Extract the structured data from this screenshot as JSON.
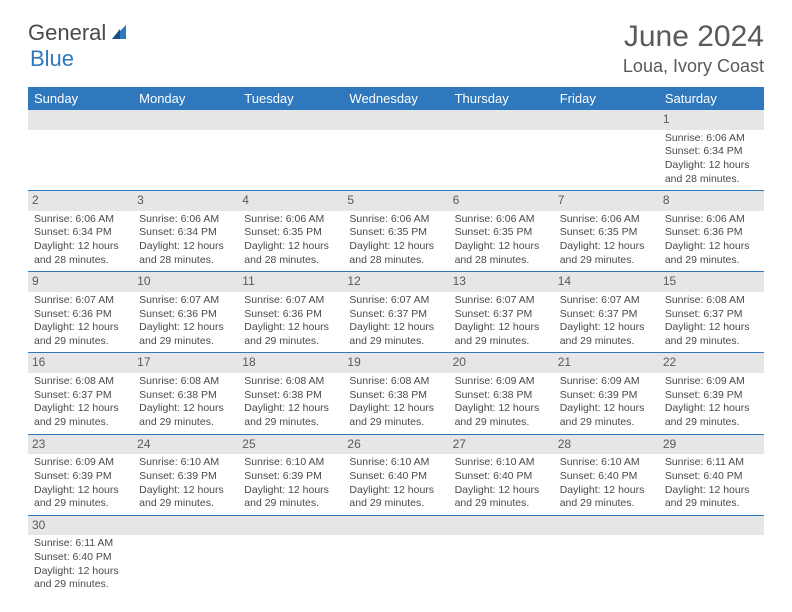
{
  "logo": {
    "part1": "General",
    "part2": "Blue"
  },
  "title": "June 2024",
  "location": "Loua, Ivory Coast",
  "colors": {
    "header_bg": "#2f78bd",
    "header_text": "#ffffff",
    "daynum_bg": "#e6e6e6",
    "rule": "#2f78bd",
    "body_text": "#4a4a4a"
  },
  "weekdays": [
    "Sunday",
    "Monday",
    "Tuesday",
    "Wednesday",
    "Thursday",
    "Friday",
    "Saturday"
  ],
  "weeks": [
    [
      null,
      null,
      null,
      null,
      null,
      null,
      {
        "n": "1",
        "sr": "Sunrise: 6:06 AM",
        "ss": "Sunset: 6:34 PM",
        "dl1": "Daylight: 12 hours",
        "dl2": "and 28 minutes."
      }
    ],
    [
      {
        "n": "2",
        "sr": "Sunrise: 6:06 AM",
        "ss": "Sunset: 6:34 PM",
        "dl1": "Daylight: 12 hours",
        "dl2": "and 28 minutes."
      },
      {
        "n": "3",
        "sr": "Sunrise: 6:06 AM",
        "ss": "Sunset: 6:34 PM",
        "dl1": "Daylight: 12 hours",
        "dl2": "and 28 minutes."
      },
      {
        "n": "4",
        "sr": "Sunrise: 6:06 AM",
        "ss": "Sunset: 6:35 PM",
        "dl1": "Daylight: 12 hours",
        "dl2": "and 28 minutes."
      },
      {
        "n": "5",
        "sr": "Sunrise: 6:06 AM",
        "ss": "Sunset: 6:35 PM",
        "dl1": "Daylight: 12 hours",
        "dl2": "and 28 minutes."
      },
      {
        "n": "6",
        "sr": "Sunrise: 6:06 AM",
        "ss": "Sunset: 6:35 PM",
        "dl1": "Daylight: 12 hours",
        "dl2": "and 28 minutes."
      },
      {
        "n": "7",
        "sr": "Sunrise: 6:06 AM",
        "ss": "Sunset: 6:35 PM",
        "dl1": "Daylight: 12 hours",
        "dl2": "and 29 minutes."
      },
      {
        "n": "8",
        "sr": "Sunrise: 6:06 AM",
        "ss": "Sunset: 6:36 PM",
        "dl1": "Daylight: 12 hours",
        "dl2": "and 29 minutes."
      }
    ],
    [
      {
        "n": "9",
        "sr": "Sunrise: 6:07 AM",
        "ss": "Sunset: 6:36 PM",
        "dl1": "Daylight: 12 hours",
        "dl2": "and 29 minutes."
      },
      {
        "n": "10",
        "sr": "Sunrise: 6:07 AM",
        "ss": "Sunset: 6:36 PM",
        "dl1": "Daylight: 12 hours",
        "dl2": "and 29 minutes."
      },
      {
        "n": "11",
        "sr": "Sunrise: 6:07 AM",
        "ss": "Sunset: 6:36 PM",
        "dl1": "Daylight: 12 hours",
        "dl2": "and 29 minutes."
      },
      {
        "n": "12",
        "sr": "Sunrise: 6:07 AM",
        "ss": "Sunset: 6:37 PM",
        "dl1": "Daylight: 12 hours",
        "dl2": "and 29 minutes."
      },
      {
        "n": "13",
        "sr": "Sunrise: 6:07 AM",
        "ss": "Sunset: 6:37 PM",
        "dl1": "Daylight: 12 hours",
        "dl2": "and 29 minutes."
      },
      {
        "n": "14",
        "sr": "Sunrise: 6:07 AM",
        "ss": "Sunset: 6:37 PM",
        "dl1": "Daylight: 12 hours",
        "dl2": "and 29 minutes."
      },
      {
        "n": "15",
        "sr": "Sunrise: 6:08 AM",
        "ss": "Sunset: 6:37 PM",
        "dl1": "Daylight: 12 hours",
        "dl2": "and 29 minutes."
      }
    ],
    [
      {
        "n": "16",
        "sr": "Sunrise: 6:08 AM",
        "ss": "Sunset: 6:37 PM",
        "dl1": "Daylight: 12 hours",
        "dl2": "and 29 minutes."
      },
      {
        "n": "17",
        "sr": "Sunrise: 6:08 AM",
        "ss": "Sunset: 6:38 PM",
        "dl1": "Daylight: 12 hours",
        "dl2": "and 29 minutes."
      },
      {
        "n": "18",
        "sr": "Sunrise: 6:08 AM",
        "ss": "Sunset: 6:38 PM",
        "dl1": "Daylight: 12 hours",
        "dl2": "and 29 minutes."
      },
      {
        "n": "19",
        "sr": "Sunrise: 6:08 AM",
        "ss": "Sunset: 6:38 PM",
        "dl1": "Daylight: 12 hours",
        "dl2": "and 29 minutes."
      },
      {
        "n": "20",
        "sr": "Sunrise: 6:09 AM",
        "ss": "Sunset: 6:38 PM",
        "dl1": "Daylight: 12 hours",
        "dl2": "and 29 minutes."
      },
      {
        "n": "21",
        "sr": "Sunrise: 6:09 AM",
        "ss": "Sunset: 6:39 PM",
        "dl1": "Daylight: 12 hours",
        "dl2": "and 29 minutes."
      },
      {
        "n": "22",
        "sr": "Sunrise: 6:09 AM",
        "ss": "Sunset: 6:39 PM",
        "dl1": "Daylight: 12 hours",
        "dl2": "and 29 minutes."
      }
    ],
    [
      {
        "n": "23",
        "sr": "Sunrise: 6:09 AM",
        "ss": "Sunset: 6:39 PM",
        "dl1": "Daylight: 12 hours",
        "dl2": "and 29 minutes."
      },
      {
        "n": "24",
        "sr": "Sunrise: 6:10 AM",
        "ss": "Sunset: 6:39 PM",
        "dl1": "Daylight: 12 hours",
        "dl2": "and 29 minutes."
      },
      {
        "n": "25",
        "sr": "Sunrise: 6:10 AM",
        "ss": "Sunset: 6:39 PM",
        "dl1": "Daylight: 12 hours",
        "dl2": "and 29 minutes."
      },
      {
        "n": "26",
        "sr": "Sunrise: 6:10 AM",
        "ss": "Sunset: 6:40 PM",
        "dl1": "Daylight: 12 hours",
        "dl2": "and 29 minutes."
      },
      {
        "n": "27",
        "sr": "Sunrise: 6:10 AM",
        "ss": "Sunset: 6:40 PM",
        "dl1": "Daylight: 12 hours",
        "dl2": "and 29 minutes."
      },
      {
        "n": "28",
        "sr": "Sunrise: 6:10 AM",
        "ss": "Sunset: 6:40 PM",
        "dl1": "Daylight: 12 hours",
        "dl2": "and 29 minutes."
      },
      {
        "n": "29",
        "sr": "Sunrise: 6:11 AM",
        "ss": "Sunset: 6:40 PM",
        "dl1": "Daylight: 12 hours",
        "dl2": "and 29 minutes."
      }
    ],
    [
      {
        "n": "30",
        "sr": "Sunrise: 6:11 AM",
        "ss": "Sunset: 6:40 PM",
        "dl1": "Daylight: 12 hours",
        "dl2": "and 29 minutes."
      },
      null,
      null,
      null,
      null,
      null,
      null
    ]
  ]
}
